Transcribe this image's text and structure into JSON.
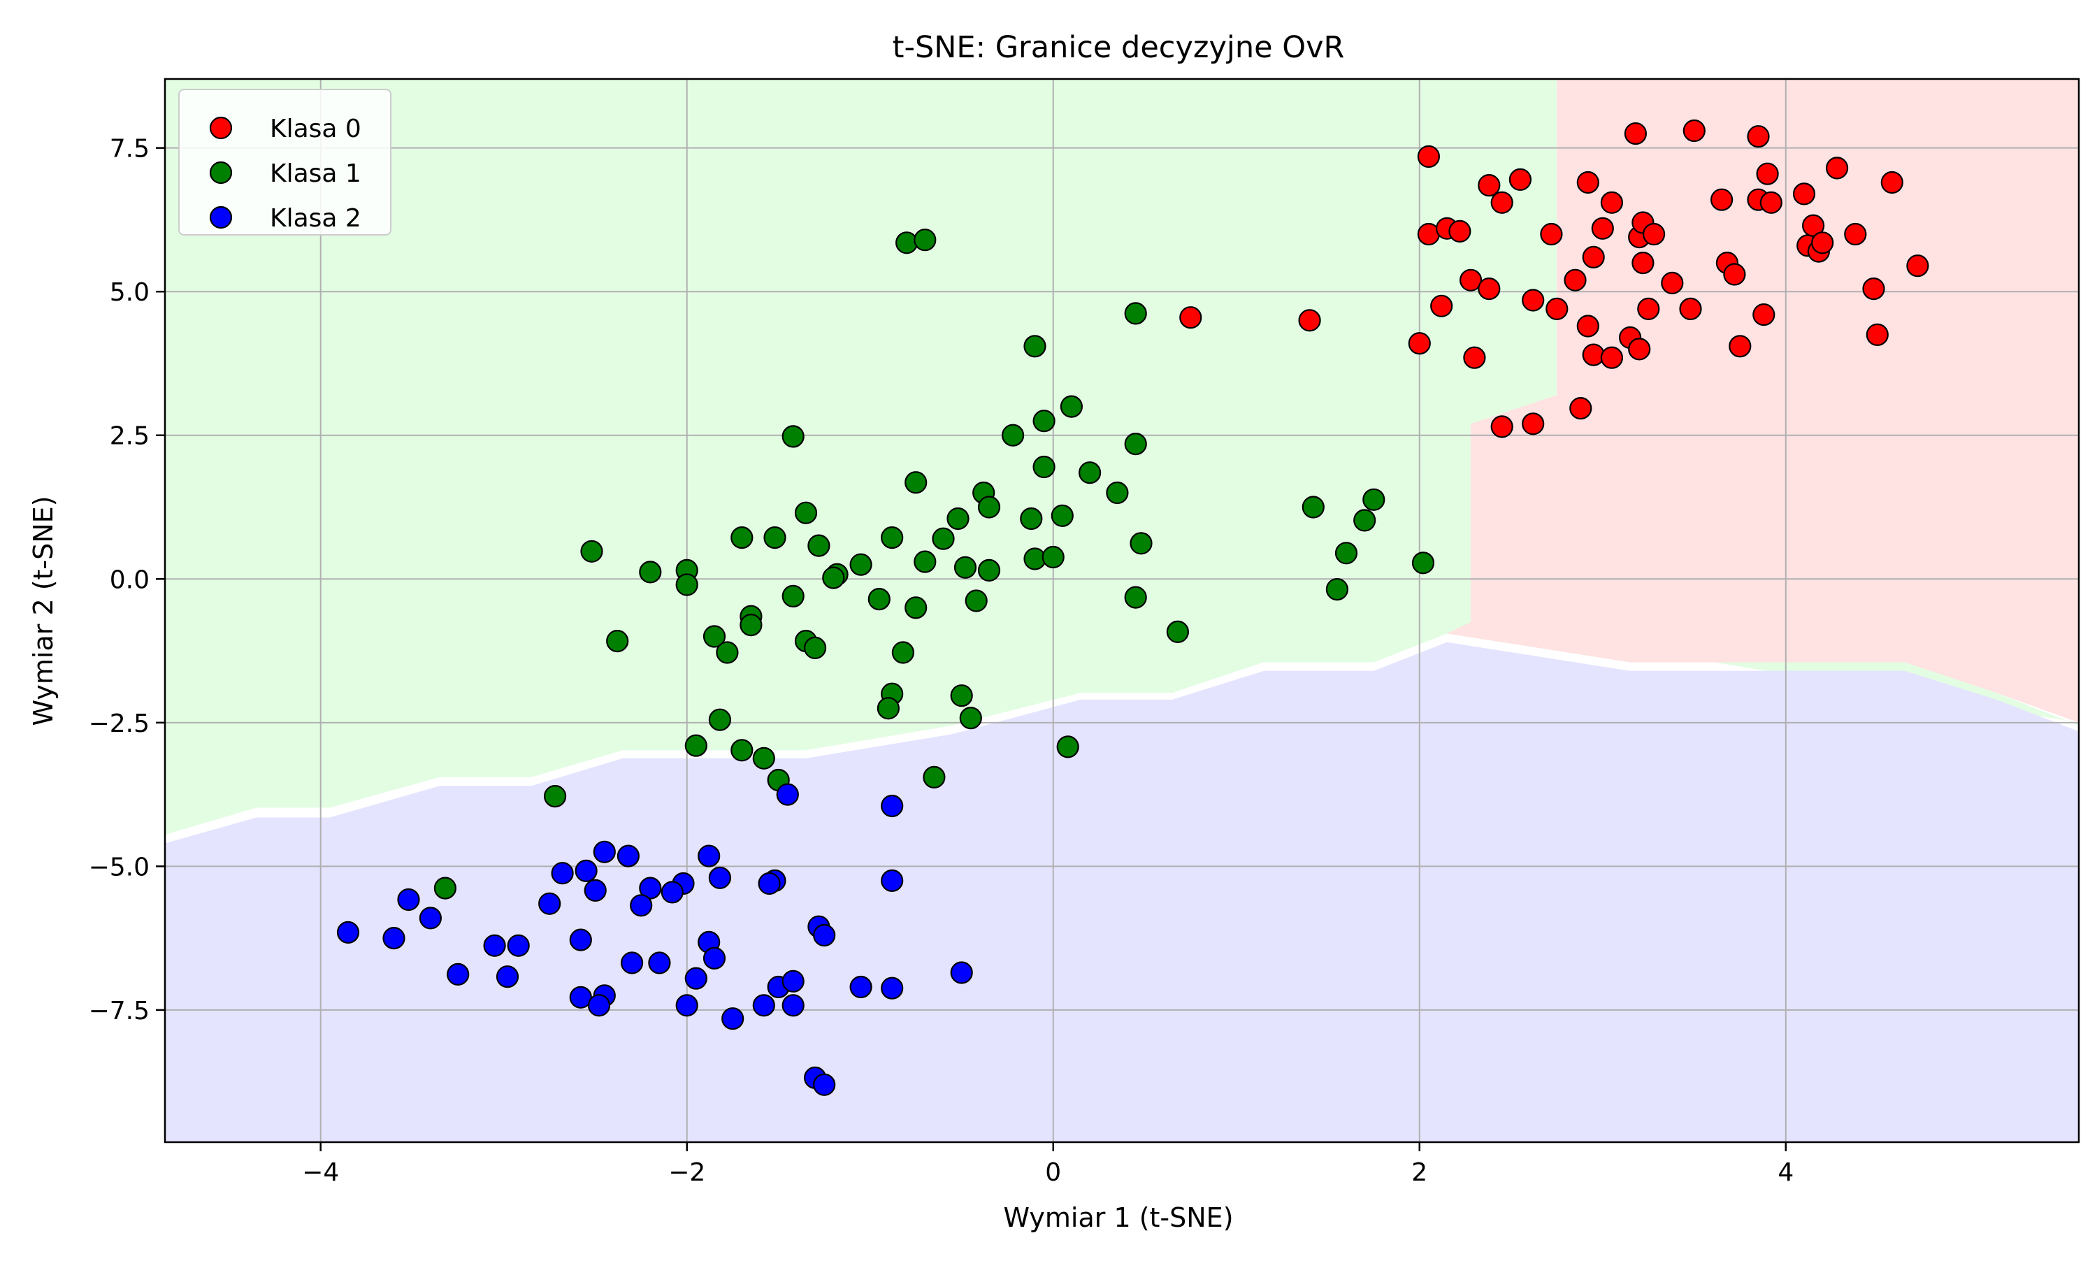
{
  "chart_data": {
    "type": "scatter",
    "title": "t-SNE: Granice decyzyjne OvR",
    "xlabel": "Wymiar 1 (t-SNE)",
    "ylabel": "Wymiar 2 (t-SNE)",
    "xlim": [
      -4.85,
      5.6
    ],
    "ylim": [
      -9.8,
      8.7
    ],
    "xticks": [
      -4,
      -2,
      0,
      2,
      4
    ],
    "xtick_labels": [
      "−4",
      "−2",
      "0",
      "2",
      "4"
    ],
    "yticks": [
      -7.5,
      -5.0,
      -2.5,
      0.0,
      2.5,
      5.0,
      7.5
    ],
    "ytick_labels": [
      "−7.5",
      "−5.0",
      "−2.5",
      "0.0",
      "2.5",
      "5.0",
      "7.5"
    ],
    "grid": true,
    "legend_position": "top-left",
    "regions": [
      {
        "class": "Klasa 1",
        "color": "#e3fde3",
        "polygon": [
          [
            -4.85,
            -4.45
          ],
          [
            -4.35,
            -3.98
          ],
          [
            -3.95,
            -3.98
          ],
          [
            -3.35,
            -3.45
          ],
          [
            -2.85,
            -3.45
          ],
          [
            -2.35,
            -2.98
          ],
          [
            -1.35,
            -2.98
          ],
          [
            -0.55,
            -2.55
          ],
          [
            0.15,
            -1.98
          ],
          [
            0.65,
            -1.98
          ],
          [
            1.15,
            -1.45
          ],
          [
            1.75,
            -1.45
          ],
          [
            2.15,
            -0.95
          ],
          [
            2.65,
            -1.2
          ],
          [
            3.15,
            -1.45
          ],
          [
            4.65,
            -1.45
          ],
          [
            5.15,
            -1.98
          ],
          [
            5.6,
            -2.55
          ],
          [
            5.6,
            -2.5
          ],
          [
            2.28,
            -0.75
          ],
          [
            2.28,
            2.7
          ],
          [
            2.75,
            3.2
          ],
          [
            2.75,
            8.7
          ],
          [
            -4.85,
            8.7
          ]
        ]
      },
      {
        "class": "Klasa 0",
        "color": "#ffe2e2",
        "polygon": [
          [
            2.28,
            -0.75
          ],
          [
            2.28,
            2.7
          ],
          [
            2.75,
            3.2
          ],
          [
            2.75,
            8.7
          ],
          [
            5.6,
            8.7
          ],
          [
            5.6,
            -2.5
          ],
          [
            5.15,
            -1.98
          ],
          [
            4.65,
            -1.45
          ],
          [
            3.15,
            -1.45
          ],
          [
            2.65,
            -1.2
          ],
          [
            2.15,
            -0.95
          ]
        ]
      },
      {
        "class": "Klasa 2",
        "color": "#e4e4ff",
        "polygon": [
          [
            -4.85,
            -4.6
          ],
          [
            -4.35,
            -4.15
          ],
          [
            -3.95,
            -4.15
          ],
          [
            -3.35,
            -3.6
          ],
          [
            -2.85,
            -3.6
          ],
          [
            -2.35,
            -3.12
          ],
          [
            -1.35,
            -3.12
          ],
          [
            -0.55,
            -2.7
          ],
          [
            0.15,
            -2.1
          ],
          [
            0.65,
            -2.1
          ],
          [
            1.15,
            -1.6
          ],
          [
            1.75,
            -1.6
          ],
          [
            2.15,
            -1.1
          ],
          [
            2.65,
            -1.35
          ],
          [
            3.15,
            -1.6
          ],
          [
            4.65,
            -1.6
          ],
          [
            5.15,
            -2.1
          ],
          [
            5.6,
            -2.65
          ],
          [
            5.6,
            -9.8
          ],
          [
            -4.85,
            -9.8
          ]
        ]
      }
    ],
    "series": [
      {
        "name": "Klasa 0",
        "color": "#ff0000",
        "points": [
          [
            0.75,
            4.55
          ],
          [
            1.4,
            4.5
          ],
          [
            2.05,
            7.35
          ],
          [
            2.05,
            6.0
          ],
          [
            2.15,
            6.1
          ],
          [
            2.22,
            6.05
          ],
          [
            2.28,
            5.2
          ],
          [
            2.38,
            6.85
          ],
          [
            2.45,
            6.55
          ],
          [
            2.55,
            6.95
          ],
          [
            2.38,
            5.05
          ],
          [
            2.12,
            4.75
          ],
          [
            2.0,
            4.1
          ],
          [
            2.3,
            3.85
          ],
          [
            2.45,
            2.65
          ],
          [
            2.62,
            2.7
          ],
          [
            2.62,
            4.85
          ],
          [
            2.72,
            6.0
          ],
          [
            2.75,
            4.7
          ],
          [
            2.85,
            5.2
          ],
          [
            2.92,
            4.4
          ],
          [
            2.92,
            6.9
          ],
          [
            2.95,
            5.6
          ],
          [
            2.95,
            3.9
          ],
          [
            3.0,
            6.1
          ],
          [
            3.05,
            6.55
          ],
          [
            3.05,
            3.85
          ],
          [
            2.88,
            2.97
          ],
          [
            3.18,
            7.75
          ],
          [
            3.2,
            5.95
          ],
          [
            3.22,
            6.2
          ],
          [
            3.22,
            5.5
          ],
          [
            3.25,
            4.7
          ],
          [
            3.28,
            6.0
          ],
          [
            3.15,
            4.2
          ],
          [
            3.2,
            4.0
          ],
          [
            3.38,
            5.15
          ],
          [
            3.48,
            4.7
          ],
          [
            3.5,
            7.8
          ],
          [
            3.65,
            6.6
          ],
          [
            3.68,
            5.5
          ],
          [
            3.72,
            5.3
          ],
          [
            3.75,
            4.05
          ],
          [
            3.85,
            6.6
          ],
          [
            3.85,
            7.7
          ],
          [
            3.88,
            4.6
          ],
          [
            3.9,
            7.05
          ],
          [
            3.92,
            6.55
          ],
          [
            4.1,
            6.7
          ],
          [
            4.12,
            5.8
          ],
          [
            4.15,
            6.15
          ],
          [
            4.18,
            5.7
          ],
          [
            4.2,
            5.85
          ],
          [
            4.28,
            7.15
          ],
          [
            4.38,
            6.0
          ],
          [
            4.48,
            5.05
          ],
          [
            4.5,
            4.25
          ],
          [
            4.58,
            6.9
          ],
          [
            4.72,
            5.45
          ]
        ]
      },
      {
        "name": "Klasa 1",
        "color": "#008000",
        "points": [
          [
            -0.8,
            5.85
          ],
          [
            -0.7,
            5.9
          ],
          [
            0.45,
            4.62
          ],
          [
            -0.1,
            4.05
          ],
          [
            0.1,
            3.0
          ],
          [
            -0.05,
            2.75
          ],
          [
            -0.22,
            2.5
          ],
          [
            -1.42,
            2.48
          ],
          [
            0.45,
            2.35
          ],
          [
            -0.05,
            1.95
          ],
          [
            0.2,
            1.85
          ],
          [
            -0.75,
            1.68
          ],
          [
            0.35,
            1.5
          ],
          [
            -0.38,
            1.5
          ],
          [
            -0.35,
            1.25
          ],
          [
            -1.35,
            1.15
          ],
          [
            -0.12,
            1.05
          ],
          [
            0.05,
            1.1
          ],
          [
            -0.52,
            1.05
          ],
          [
            1.42,
            1.25
          ],
          [
            1.75,
            1.38
          ],
          [
            1.7,
            1.02
          ],
          [
            -0.6,
            0.7
          ],
          [
            -0.88,
            0.72
          ],
          [
            -1.7,
            0.72
          ],
          [
            -1.52,
            0.72
          ],
          [
            -1.28,
            0.58
          ],
          [
            0.48,
            0.62
          ],
          [
            -2.52,
            0.48
          ],
          [
            -0.7,
            0.3
          ],
          [
            -1.05,
            0.25
          ],
          [
            -0.1,
            0.35
          ],
          [
            0.0,
            0.38
          ],
          [
            -0.48,
            0.2
          ],
          [
            -0.35,
            0.15
          ],
          [
            -2.2,
            0.12
          ],
          [
            -2.0,
            0.15
          ],
          [
            -1.18,
            0.08
          ],
          [
            -1.2,
            0.02
          ],
          [
            1.6,
            0.45
          ],
          [
            2.02,
            0.28
          ],
          [
            -2.0,
            -0.1
          ],
          [
            1.55,
            -0.18
          ],
          [
            -0.95,
            -0.35
          ],
          [
            -1.42,
            -0.3
          ],
          [
            0.45,
            -0.32
          ],
          [
            -0.42,
            -0.38
          ],
          [
            -0.75,
            -0.5
          ],
          [
            -1.65,
            -0.65
          ],
          [
            -1.65,
            -0.8
          ],
          [
            0.68,
            -0.92
          ],
          [
            -1.85,
            -1.0
          ],
          [
            -2.38,
            -1.08
          ],
          [
            -1.35,
            -1.08
          ],
          [
            -1.3,
            -1.2
          ],
          [
            -1.78,
            -1.28
          ],
          [
            -0.82,
            -1.28
          ],
          [
            -0.88,
            -2.0
          ],
          [
            -0.9,
            -2.25
          ],
          [
            -0.5,
            -2.03
          ],
          [
            -0.45,
            -2.42
          ],
          [
            -1.82,
            -2.45
          ],
          [
            -1.95,
            -2.9
          ],
          [
            -1.7,
            -2.98
          ],
          [
            -1.58,
            -3.12
          ],
          [
            0.08,
            -2.92
          ],
          [
            -1.5,
            -3.5
          ],
          [
            -0.65,
            -3.45
          ],
          [
            -2.72,
            -3.78
          ],
          [
            -3.32,
            -5.38
          ]
        ]
      },
      {
        "name": "Klasa 2",
        "color": "#0000ff",
        "points": [
          [
            -1.45,
            -3.75
          ],
          [
            -0.88,
            -3.95
          ],
          [
            -2.45,
            -4.75
          ],
          [
            -2.32,
            -4.82
          ],
          [
            -1.88,
            -4.82
          ],
          [
            -2.68,
            -5.12
          ],
          [
            -2.55,
            -5.08
          ],
          [
            -1.82,
            -5.2
          ],
          [
            -1.52,
            -5.25
          ],
          [
            -1.55,
            -5.3
          ],
          [
            -0.88,
            -5.25
          ],
          [
            -2.5,
            -5.42
          ],
          [
            -2.02,
            -5.3
          ],
          [
            -2.08,
            -5.45
          ],
          [
            -2.2,
            -5.38
          ],
          [
            -2.25,
            -5.68
          ],
          [
            -2.75,
            -5.65
          ],
          [
            -3.52,
            -5.58
          ],
          [
            -3.4,
            -5.9
          ],
          [
            -3.85,
            -6.15
          ],
          [
            -3.6,
            -6.25
          ],
          [
            -2.58,
            -6.28
          ],
          [
            -3.05,
            -6.38
          ],
          [
            -2.92,
            -6.38
          ],
          [
            -1.28,
            -6.05
          ],
          [
            -1.25,
            -6.2
          ],
          [
            -1.88,
            -6.32
          ],
          [
            -1.85,
            -6.6
          ],
          [
            -2.3,
            -6.68
          ],
          [
            -2.15,
            -6.68
          ],
          [
            -3.25,
            -6.88
          ],
          [
            -2.98,
            -6.92
          ],
          [
            -1.95,
            -6.95
          ],
          [
            -0.5,
            -6.85
          ],
          [
            -1.5,
            -7.1
          ],
          [
            -1.42,
            -7.0
          ],
          [
            -1.05,
            -7.1
          ],
          [
            -0.88,
            -7.12
          ],
          [
            -2.58,
            -7.28
          ],
          [
            -2.45,
            -7.25
          ],
          [
            -2.48,
            -7.42
          ],
          [
            -2.0,
            -7.42
          ],
          [
            -1.58,
            -7.42
          ],
          [
            -1.42,
            -7.42
          ],
          [
            -1.75,
            -7.65
          ],
          [
            -1.3,
            -8.68
          ],
          [
            -1.25,
            -8.8
          ]
        ]
      }
    ]
  }
}
